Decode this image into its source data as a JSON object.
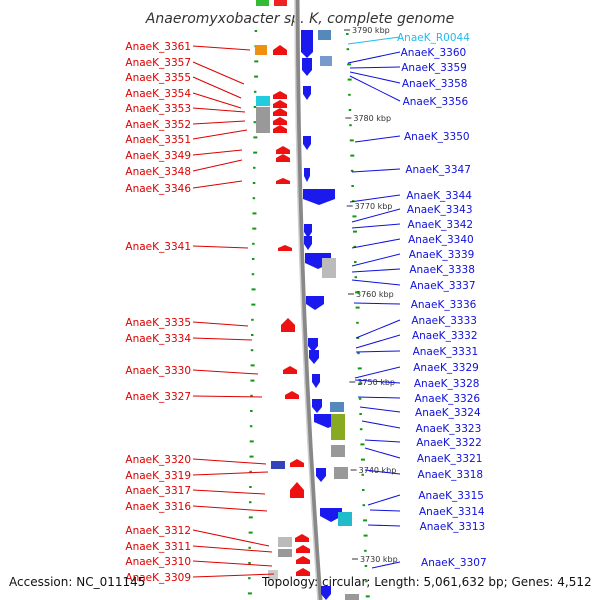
{
  "title": "Anaeromyxobacter sp. K, complete genome",
  "footer": {
    "accession": "Accession: NC_011145",
    "topology": "Topology: circular; Length: 5,061,632 bp; Genes: 4,512"
  },
  "colors": {
    "left_label": "#dd0000",
    "right_label": "#1010dd",
    "rna_label": "#22bbee",
    "backbone": "#888888",
    "tick": "#119911"
  },
  "scale_labels": [
    "3790 kbp",
    "3780 kbp",
    "3770 kbp",
    "3760 kbp",
    "3750 kbp",
    "3740 kbp",
    "3730 kbp"
  ],
  "left_genes": [
    "AnaeK_3361",
    "AnaeK_3357",
    "AnaeK_3355",
    "AnaeK_3354",
    "AnaeK_3353",
    "AnaeK_3352",
    "AnaeK_3351",
    "AnaeK_3349",
    "AnaeK_3348",
    "AnaeK_3346",
    "AnaeK_3341",
    "AnaeK_3335",
    "AnaeK_3334",
    "AnaeK_3330",
    "AnaeK_3327",
    "AnaeK_3320",
    "AnaeK_3319",
    "AnaeK_3317",
    "AnaeK_3316",
    "AnaeK_3312",
    "AnaeK_3311",
    "AnaeK_3310",
    "AnaeK_3309"
  ],
  "right_genes": [
    "AnaeK_R0044",
    "AnaeK_3360",
    "AnaeK_3359",
    "AnaeK_3358",
    "AnaeK_3356",
    "AnaeK_3350",
    "AnaeK_3347",
    "AnaeK_3344",
    "AnaeK_3343",
    "AnaeK_3342",
    "AnaeK_3340",
    "AnaeK_3339",
    "AnaeK_3338",
    "AnaeK_3337",
    "AnaeK_3336",
    "AnaeK_3333",
    "AnaeK_3332",
    "AnaeK_3331",
    "AnaeK_3329",
    "AnaeK_3328",
    "AnaeK_3326",
    "AnaeK_3324",
    "AnaeK_3323",
    "AnaeK_3322",
    "AnaeK_3321",
    "AnaeK_3318",
    "AnaeK_3315",
    "AnaeK_3314",
    "AnaeK_3313",
    "AnaeK_3307"
  ]
}
